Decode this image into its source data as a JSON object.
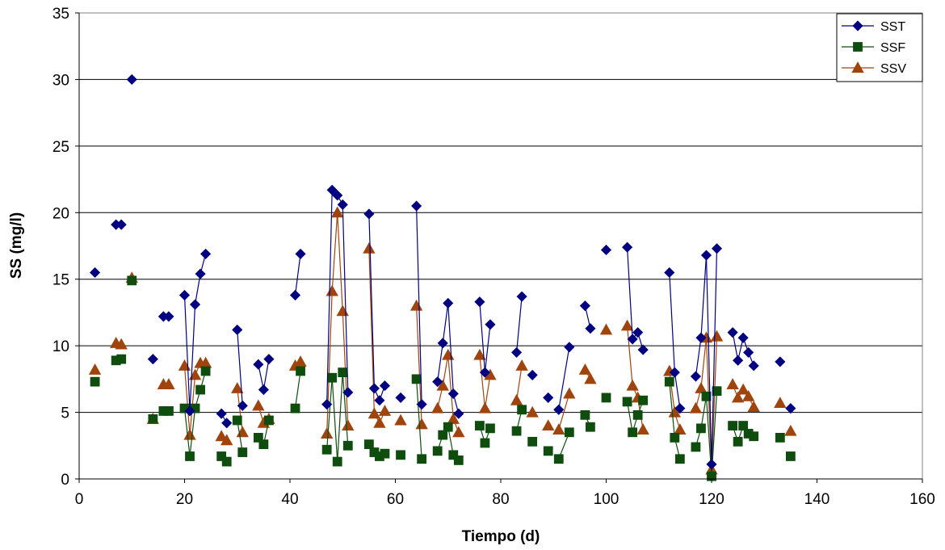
{
  "chart_data": {
    "type": "scatter",
    "title": "",
    "xlabel": "Tiempo (d)",
    "ylabel": "SS (mg/l)",
    "xlim": [
      0,
      160
    ],
    "ylim": [
      0,
      35
    ],
    "xticks": [
      0,
      20,
      40,
      60,
      80,
      100,
      120,
      140,
      160
    ],
    "yticks": [
      0,
      5,
      10,
      15,
      20,
      25,
      30,
      35
    ],
    "grid": "horizontal",
    "legend_position": "top-right",
    "series": [
      {
        "name": "SST",
        "color": "#000080",
        "marker": "diamond",
        "points": [
          [
            3,
            15.5
          ],
          [
            7,
            19.1
          ],
          [
            8,
            19.1
          ],
          [
            10,
            30.0
          ],
          [
            14,
            9.0
          ],
          [
            16,
            12.2
          ],
          [
            17,
            12.2
          ],
          [
            20,
            13.8
          ],
          [
            21,
            5.1
          ],
          [
            22,
            13.1
          ],
          [
            23,
            15.4
          ],
          [
            24,
            16.9
          ],
          [
            27,
            4.9
          ],
          [
            28,
            4.2
          ],
          [
            30,
            11.2
          ],
          [
            31,
            5.5
          ],
          [
            34,
            8.6
          ],
          [
            35,
            6.7
          ],
          [
            36,
            9.0
          ],
          [
            41,
            13.8
          ],
          [
            42,
            16.9
          ],
          [
            47,
            5.6
          ],
          [
            48,
            21.7
          ],
          [
            49,
            21.3
          ],
          [
            50,
            20.6
          ],
          [
            51,
            6.5
          ],
          [
            55,
            19.9
          ],
          [
            56,
            6.8
          ],
          [
            57,
            5.9
          ],
          [
            58,
            7.0
          ],
          [
            61,
            6.1
          ],
          [
            64,
            20.5
          ],
          [
            65,
            5.6
          ],
          [
            68,
            7.3
          ],
          [
            69,
            10.2
          ],
          [
            70,
            13.2
          ],
          [
            71,
            6.4
          ],
          [
            72,
            4.9
          ],
          [
            76,
            13.3
          ],
          [
            77,
            8.0
          ],
          [
            78,
            11.6
          ],
          [
            83,
            9.5
          ],
          [
            84,
            13.7
          ],
          [
            86,
            7.8
          ],
          [
            89,
            6.1
          ],
          [
            91,
            5.2
          ],
          [
            93,
            9.9
          ],
          [
            96,
            13.0
          ],
          [
            97,
            11.3
          ],
          [
            100,
            17.2
          ],
          [
            104,
            17.4
          ],
          [
            105,
            10.5
          ],
          [
            106,
            11.0
          ],
          [
            107,
            9.7
          ],
          [
            112,
            15.5
          ],
          [
            113,
            8.0
          ],
          [
            114,
            5.3
          ],
          [
            117,
            7.7
          ],
          [
            118,
            10.6
          ],
          [
            119,
            16.8
          ],
          [
            120,
            1.1
          ],
          [
            121,
            17.3
          ],
          [
            124,
            11.0
          ],
          [
            125,
            8.9
          ],
          [
            126,
            10.6
          ],
          [
            127,
            9.5
          ],
          [
            128,
            8.5
          ],
          [
            133,
            8.8
          ],
          [
            135,
            5.3
          ]
        ],
        "segments": [
          [
            20,
            21
          ],
          [
            21,
            22
          ],
          [
            22,
            23
          ],
          [
            23,
            24
          ],
          [
            27,
            28
          ],
          [
            30,
            31
          ],
          [
            34,
            35
          ],
          [
            35,
            36
          ],
          [
            41,
            42
          ],
          [
            47,
            48
          ],
          [
            48,
            49
          ],
          [
            49,
            50
          ],
          [
            50,
            51
          ],
          [
            55,
            56
          ],
          [
            56,
            57
          ],
          [
            57,
            58
          ],
          [
            64,
            65
          ],
          [
            68,
            69
          ],
          [
            69,
            70
          ],
          [
            70,
            71
          ],
          [
            71,
            72
          ],
          [
            76,
            77
          ],
          [
            77,
            78
          ],
          [
            83,
            84
          ],
          [
            91,
            93
          ],
          [
            96,
            97
          ],
          [
            104,
            105
          ],
          [
            105,
            106
          ],
          [
            106,
            107
          ],
          [
            112,
            113
          ],
          [
            113,
            114
          ],
          [
            117,
            118
          ],
          [
            118,
            119
          ],
          [
            119,
            120
          ],
          [
            120,
            121
          ],
          [
            124,
            125
          ],
          [
            125,
            126
          ],
          [
            126,
            127
          ],
          [
            127,
            128
          ]
        ]
      },
      {
        "name": "SSF",
        "color": "#0E4D0E",
        "marker": "square",
        "points": [
          [
            3,
            7.3
          ],
          [
            7,
            8.9
          ],
          [
            8,
            9.0
          ],
          [
            10,
            14.9
          ],
          [
            14,
            4.5
          ],
          [
            16,
            5.1
          ],
          [
            17,
            5.1
          ],
          [
            20,
            5.3
          ],
          [
            21,
            1.7
          ],
          [
            22,
            5.3
          ],
          [
            23,
            6.7
          ],
          [
            24,
            8.1
          ],
          [
            27,
            1.7
          ],
          [
            28,
            1.3
          ],
          [
            30,
            4.4
          ],
          [
            31,
            2.0
          ],
          [
            34,
            3.1
          ],
          [
            35,
            2.6
          ],
          [
            36,
            4.4
          ],
          [
            41,
            5.3
          ],
          [
            42,
            8.1
          ],
          [
            47,
            2.2
          ],
          [
            48,
            7.6
          ],
          [
            49,
            1.3
          ],
          [
            50,
            8.0
          ],
          [
            51,
            2.5
          ],
          [
            55,
            2.6
          ],
          [
            56,
            2.0
          ],
          [
            57,
            1.7
          ],
          [
            58,
            1.9
          ],
          [
            61,
            1.8
          ],
          [
            64,
            7.5
          ],
          [
            65,
            1.5
          ],
          [
            68,
            2.1
          ],
          [
            69,
            3.3
          ],
          [
            70,
            3.9
          ],
          [
            71,
            1.8
          ],
          [
            72,
            1.4
          ],
          [
            76,
            4.0
          ],
          [
            77,
            2.7
          ],
          [
            78,
            3.8
          ],
          [
            83,
            3.6
          ],
          [
            84,
            5.2
          ],
          [
            86,
            2.8
          ],
          [
            89,
            2.1
          ],
          [
            91,
            1.5
          ],
          [
            93,
            3.5
          ],
          [
            96,
            4.8
          ],
          [
            97,
            3.9
          ],
          [
            100,
            6.1
          ],
          [
            104,
            5.8
          ],
          [
            105,
            3.5
          ],
          [
            106,
            4.8
          ],
          [
            107,
            5.9
          ],
          [
            112,
            7.3
          ],
          [
            113,
            3.1
          ],
          [
            114,
            1.5
          ],
          [
            117,
            2.4
          ],
          [
            118,
            3.8
          ],
          [
            119,
            6.2
          ],
          [
            120,
            0.2
          ],
          [
            121,
            6.6
          ],
          [
            124,
            4.0
          ],
          [
            125,
            2.8
          ],
          [
            126,
            4.0
          ],
          [
            127,
            3.4
          ],
          [
            128,
            3.2
          ],
          [
            133,
            3.1
          ],
          [
            135,
            1.7
          ]
        ],
        "segments": [
          [
            20,
            21
          ],
          [
            21,
            22
          ],
          [
            22,
            23
          ],
          [
            23,
            24
          ],
          [
            27,
            28
          ],
          [
            30,
            31
          ],
          [
            34,
            35
          ],
          [
            35,
            36
          ],
          [
            41,
            42
          ],
          [
            47,
            48
          ],
          [
            48,
            49
          ],
          [
            49,
            50
          ],
          [
            50,
            51
          ],
          [
            55,
            56
          ],
          [
            56,
            57
          ],
          [
            57,
            58
          ],
          [
            64,
            65
          ],
          [
            68,
            69
          ],
          [
            69,
            70
          ],
          [
            70,
            71
          ],
          [
            71,
            72
          ],
          [
            76,
            77
          ],
          [
            77,
            78
          ],
          [
            83,
            84
          ],
          [
            91,
            93
          ],
          [
            96,
            97
          ],
          [
            104,
            105
          ],
          [
            105,
            106
          ],
          [
            106,
            107
          ],
          [
            112,
            113
          ],
          [
            113,
            114
          ],
          [
            117,
            118
          ],
          [
            118,
            119
          ],
          [
            119,
            120
          ],
          [
            120,
            121
          ],
          [
            124,
            125
          ],
          [
            125,
            126
          ],
          [
            126,
            127
          ],
          [
            127,
            128
          ]
        ]
      },
      {
        "name": "SSV",
        "color": "#A0440E",
        "marker": "triangle",
        "points": [
          [
            3,
            8.2
          ],
          [
            7,
            10.2
          ],
          [
            8,
            10.1
          ],
          [
            10,
            15.1
          ],
          [
            14,
            4.5
          ],
          [
            16,
            7.1
          ],
          [
            17,
            7.1
          ],
          [
            20,
            8.5
          ],
          [
            21,
            3.3
          ],
          [
            22,
            7.8
          ],
          [
            23,
            8.7
          ],
          [
            24,
            8.7
          ],
          [
            27,
            3.2
          ],
          [
            28,
            2.9
          ],
          [
            30,
            6.8
          ],
          [
            31,
            3.5
          ],
          [
            34,
            5.5
          ],
          [
            35,
            4.2
          ],
          [
            36,
            4.5
          ],
          [
            41,
            8.5
          ],
          [
            42,
            8.8
          ],
          [
            47,
            3.4
          ],
          [
            48,
            14.1
          ],
          [
            49,
            20.0
          ],
          [
            50,
            12.6
          ],
          [
            51,
            4.0
          ],
          [
            55,
            17.3
          ],
          [
            56,
            4.9
          ],
          [
            57,
            4.2
          ],
          [
            58,
            5.1
          ],
          [
            61,
            4.4
          ],
          [
            64,
            13.0
          ],
          [
            65,
            4.1
          ],
          [
            68,
            5.3
          ],
          [
            69,
            7.0
          ],
          [
            70,
            9.3
          ],
          [
            71,
            4.5
          ],
          [
            72,
            3.5
          ],
          [
            76,
            9.3
          ],
          [
            77,
            5.3
          ],
          [
            78,
            7.8
          ],
          [
            83,
            5.9
          ],
          [
            84,
            8.5
          ],
          [
            86,
            5.0
          ],
          [
            89,
            4.0
          ],
          [
            91,
            3.7
          ],
          [
            93,
            6.4
          ],
          [
            96,
            8.2
          ],
          [
            97,
            7.5
          ],
          [
            100,
            11.2
          ],
          [
            104,
            11.5
          ],
          [
            105,
            7.0
          ],
          [
            106,
            6.1
          ],
          [
            107,
            3.7
          ],
          [
            112,
            8.1
          ],
          [
            113,
            5.0
          ],
          [
            114,
            3.7
          ],
          [
            117,
            5.3
          ],
          [
            118,
            6.8
          ],
          [
            119,
            10.6
          ],
          [
            120,
            0.7
          ],
          [
            121,
            10.7
          ],
          [
            124,
            7.1
          ],
          [
            125,
            6.1
          ],
          [
            126,
            6.7
          ],
          [
            127,
            6.2
          ],
          [
            128,
            5.4
          ],
          [
            133,
            5.7
          ],
          [
            135,
            3.6
          ]
        ],
        "segments": [
          [
            20,
            21
          ],
          [
            21,
            22
          ],
          [
            22,
            23
          ],
          [
            23,
            24
          ],
          [
            27,
            28
          ],
          [
            30,
            31
          ],
          [
            34,
            35
          ],
          [
            35,
            36
          ],
          [
            41,
            42
          ],
          [
            47,
            48
          ],
          [
            48,
            49
          ],
          [
            49,
            50
          ],
          [
            50,
            51
          ],
          [
            55,
            56
          ],
          [
            56,
            57
          ],
          [
            57,
            58
          ],
          [
            64,
            65
          ],
          [
            68,
            69
          ],
          [
            69,
            70
          ],
          [
            70,
            71
          ],
          [
            71,
            72
          ],
          [
            76,
            77
          ],
          [
            77,
            78
          ],
          [
            83,
            84
          ],
          [
            91,
            93
          ],
          [
            96,
            97
          ],
          [
            104,
            105
          ],
          [
            105,
            106
          ],
          [
            106,
            107
          ],
          [
            112,
            113
          ],
          [
            113,
            114
          ],
          [
            117,
            118
          ],
          [
            118,
            119
          ],
          [
            119,
            120
          ],
          [
            120,
            121
          ],
          [
            124,
            125
          ],
          [
            125,
            126
          ],
          [
            126,
            127
          ],
          [
            127,
            128
          ]
        ]
      }
    ]
  }
}
